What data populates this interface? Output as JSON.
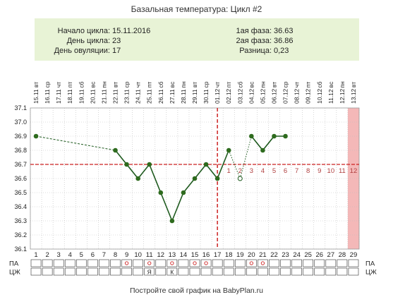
{
  "title": "Базальная температура: Цикл #2",
  "info": {
    "left": [
      {
        "label": "Начало цикла:",
        "value": "15.11.2016"
      },
      {
        "label": "День цикла:",
        "value": "23"
      },
      {
        "label": "День овуляции:",
        "value": "17"
      }
    ],
    "right": [
      {
        "label": "1ая фаза:",
        "value": "36.63"
      },
      {
        "label": "2ая фаза:",
        "value": "36.86"
      },
      {
        "label": "Разница:",
        "value": "0,23"
      }
    ]
  },
  "colors": {
    "info_bg": "#e8f3d6",
    "line": "#1e5a1e",
    "point": "#2e6b1e",
    "coverline": "#cc2222",
    "ovulation_line": "#cc2222",
    "phase_numbers": "#b04040",
    "highlight_column": "#f4b8b8",
    "grid": "#bbbbbb"
  },
  "chart_data": {
    "type": "line",
    "title": "Базальная температура: Цикл #2",
    "xlabel": "",
    "ylabel": "",
    "cycle_days": [
      1,
      2,
      3,
      4,
      5,
      6,
      7,
      8,
      9,
      10,
      11,
      12,
      13,
      14,
      15,
      16,
      17,
      18,
      19,
      20,
      21,
      22,
      23,
      24,
      25,
      26,
      27,
      28,
      29
    ],
    "weekdays": [
      "вт",
      "ср",
      "чт",
      "пт",
      "сб",
      "вс",
      "пн",
      "вт",
      "ср",
      "чт",
      "пт",
      "сб",
      "вс",
      "пн",
      "вт",
      "ср",
      "чт",
      "пт",
      "сб",
      "вс",
      "пн",
      "вт",
      "ср",
      "чт",
      "пт",
      "сб",
      "вс",
      "пн",
      "вт"
    ],
    "dates": [
      "15.11",
      "16.11",
      "17.11",
      "18.11",
      "19.11",
      "20.11",
      "21.11",
      "22.11",
      "23.11",
      "24.11",
      "25.11",
      "26.11",
      "27.11",
      "28.11",
      "29.11",
      "30.11",
      "01.12",
      "02.12",
      "03.12",
      "04.12",
      "05.12",
      "06.12",
      "07.12",
      "08.12",
      "09.12",
      "10.12",
      "11.12",
      "12.12",
      "13.12"
    ],
    "ylim": [
      36.1,
      37.1
    ],
    "yticks": [
      "37.1",
      "37.0",
      "36.9",
      "36.8",
      "36.7",
      "36.6",
      "36.5",
      "36.4",
      "36.3",
      "36.2",
      "36.1"
    ],
    "series": [
      {
        "points": [
          {
            "day": 1,
            "temp": 36.9
          },
          {
            "day": 8,
            "temp": 36.8
          },
          {
            "day": 9,
            "temp": 36.7
          },
          {
            "day": 10,
            "temp": 36.6
          },
          {
            "day": 11,
            "temp": 36.7
          },
          {
            "day": 12,
            "temp": 36.5
          },
          {
            "day": 13,
            "temp": 36.3
          },
          {
            "day": 14,
            "temp": 36.5
          },
          {
            "day": 15,
            "temp": 36.6
          },
          {
            "day": 16,
            "temp": 36.7
          },
          {
            "day": 17,
            "temp": 36.6
          },
          {
            "day": 18,
            "temp": 36.8
          },
          {
            "day": 19,
            "temp": 36.6,
            "excluded": true
          },
          {
            "day": 20,
            "temp": 36.9
          },
          {
            "day": 21,
            "temp": 36.8
          },
          {
            "day": 22,
            "temp": 36.9
          },
          {
            "day": 23,
            "temp": 36.9
          }
        ],
        "dashed_segment": [
          1,
          8
        ],
        "dotted_segment": [
          18,
          19,
          20
        ]
      }
    ],
    "coverline": 36.7,
    "ovulation_day": 17,
    "highlight_day": 29,
    "luteal_numbers": [
      "1",
      "2",
      "3",
      "4",
      "5",
      "6",
      "7",
      "8",
      "9",
      "10",
      "11",
      "12"
    ],
    "row_labels": [
      "ПА",
      "ЦЖ"
    ],
    "pa_marks": [
      9,
      11,
      13,
      15,
      16,
      20,
      21
    ],
    "cz_marks": [
      {
        "day": 11,
        "text": "Я"
      },
      {
        "day": 13,
        "text": "К"
      }
    ]
  },
  "footer": "Постройте свой график на BabyPlan.ru"
}
